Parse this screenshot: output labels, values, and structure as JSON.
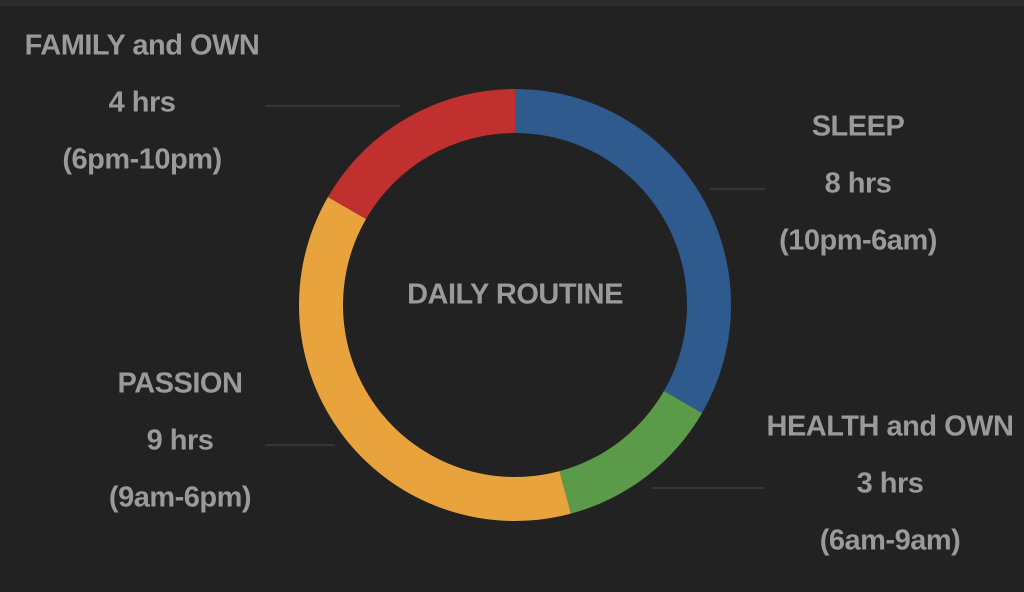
{
  "chart_data": {
    "type": "donut",
    "title": "DAILY ROUTINE",
    "categories": [
      "SLEEP",
      "HEALTH and OWN",
      "PASSION",
      "FAMILY and OWN"
    ],
    "values": [
      8,
      3,
      9,
      4
    ],
    "value_labels": [
      "8 hrs",
      "3 hrs",
      "9 hrs",
      "4 hrs"
    ],
    "annotations": [
      "(10pm-6am)",
      "(6am-9am)",
      "(9am-6pm)",
      "(6pm-10pm)"
    ],
    "colors": [
      "#2e5a8e",
      "#5b9a48",
      "#e9a33d",
      "#c0302f"
    ]
  }
}
